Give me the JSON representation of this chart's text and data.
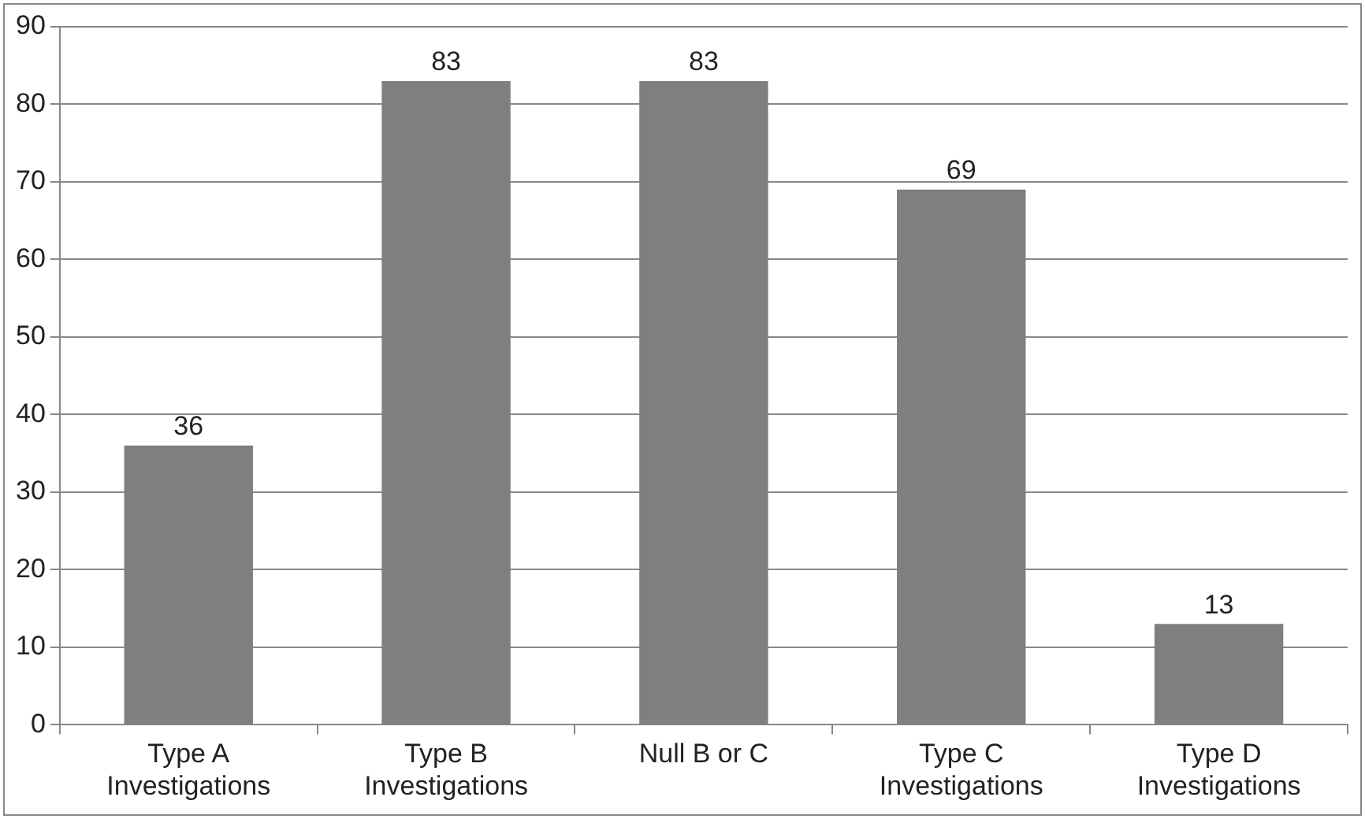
{
  "chart_data": {
    "type": "bar",
    "categories": [
      "Type A Investigations",
      "Type B Investigations",
      "Null B or C",
      "Type C Investigations",
      "Type D Investigations"
    ],
    "values": [
      36,
      83,
      83,
      69,
      13
    ],
    "color": "#7f7f7f",
    "ylim": [
      0,
      90
    ],
    "yticks": [
      0,
      10,
      20,
      30,
      40,
      50,
      60,
      70,
      80,
      90
    ],
    "grid": "y",
    "legend": false,
    "data_labels": true
  }
}
